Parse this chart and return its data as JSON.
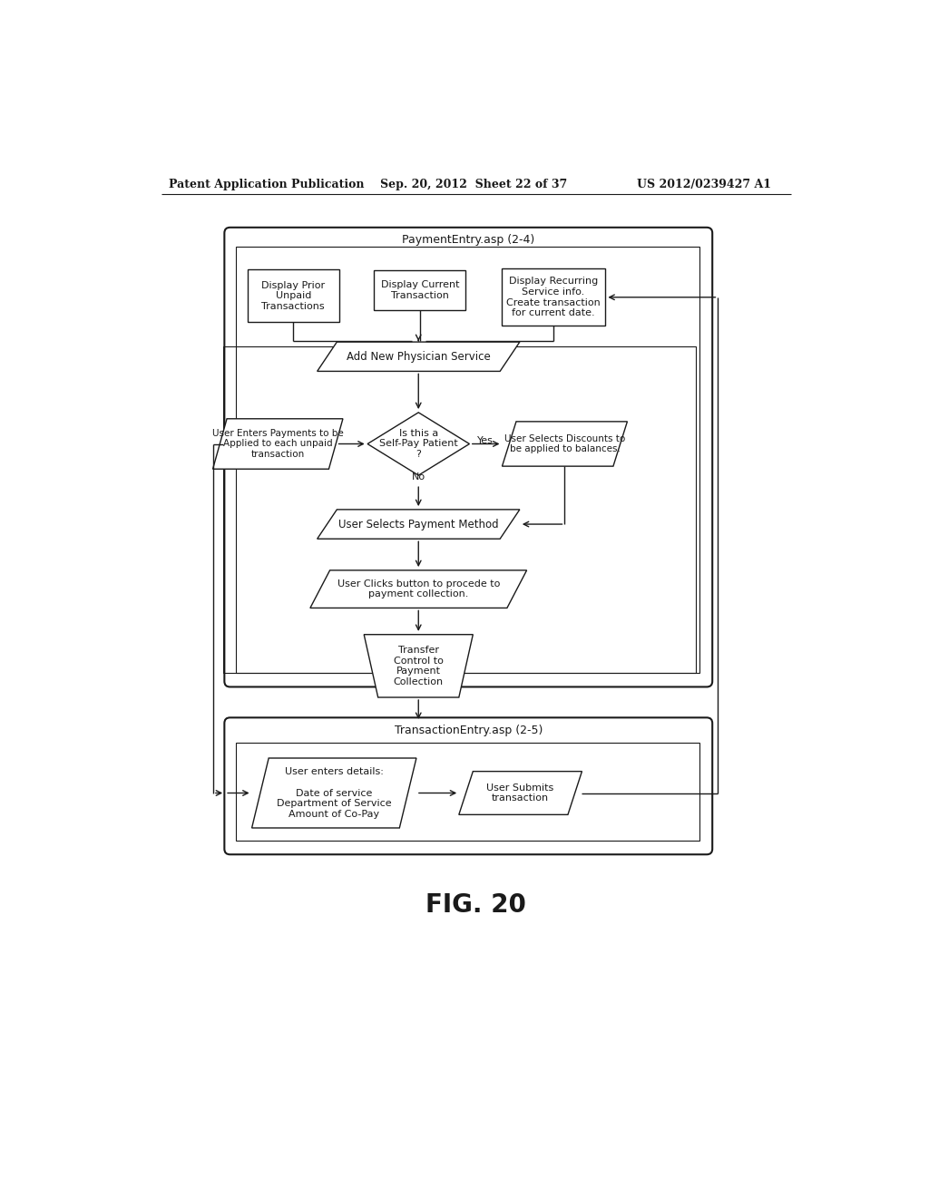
{
  "header_left": "Patent Application Publication",
  "header_mid": "Sep. 20, 2012  Sheet 22 of 37",
  "header_right": "US 2012/0239427 A1",
  "fig_label": "FIG. 20",
  "page_bg": "#ffffff",
  "outer_box1_label": "PaymentEntry.asp (2-4)",
  "outer_box2_label": "TransactionEntry.asp (2-5)",
  "boxes": {
    "display_prior": "Display Prior\nUnpaid\nTransactions",
    "display_current": "Display Current\nTransaction",
    "display_recurring": "Display Recurring\nService info.\nCreate transaction\nfor current date.",
    "add_physician": "Add New Physician Service",
    "user_enters_payments": "User Enters Payments to be\nApplied to each unpaid\ntransaction",
    "self_pay_diamond": "Is this a\nSelf-Pay Patient\n?",
    "user_selects_discounts": "User Selects Discounts to\nbe applied to balances.",
    "user_selects_payment": "User Selects Payment Method",
    "user_clicks_button": "User Clicks button to procede to\npayment collection.",
    "transfer_control": "Transfer\nControl to\nPayment\nCollection",
    "user_enters_details": "User enters details:\n\nDate of service\nDepartment of Service\nAmount of Co-Pay",
    "user_submits": "User Submits\ntransaction"
  },
  "line_color": "#1a1a1a",
  "box_bg": "#ffffff",
  "font_size": 8,
  "header_font_size": 9
}
